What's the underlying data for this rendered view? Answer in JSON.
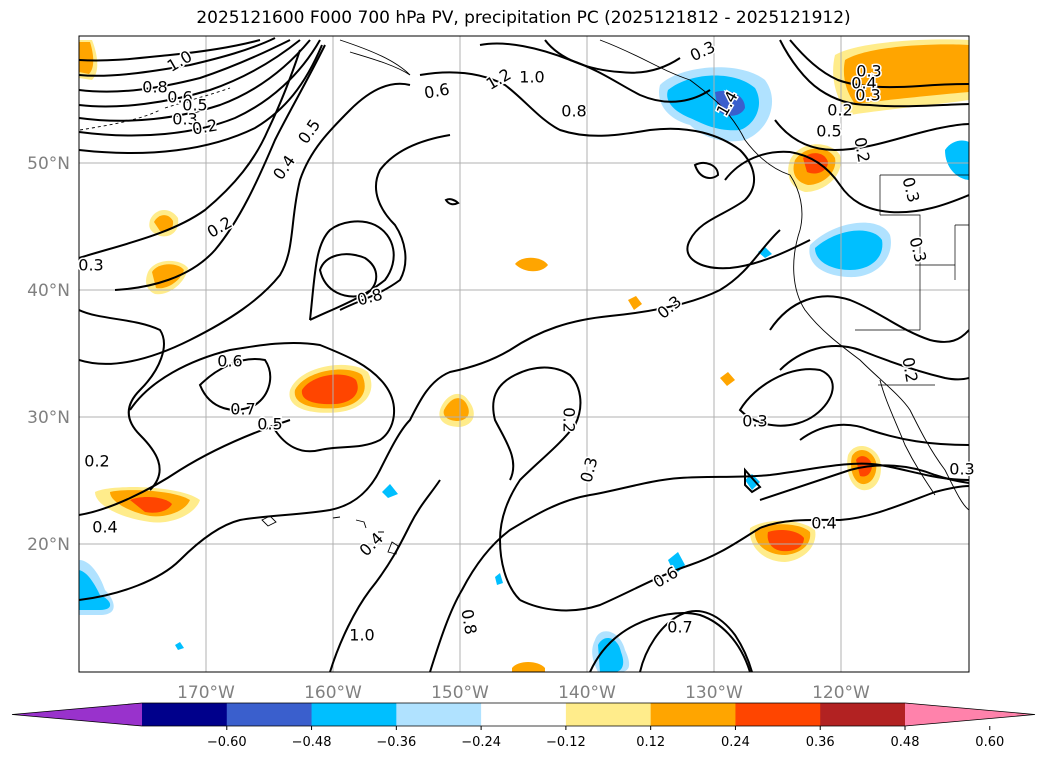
{
  "title": "2025121600 F000 700 hPa PV, precipitation PC (2025121812 - 2025121912)",
  "lat_ticks": [
    "50°N",
    "40°N",
    "30°N",
    "20°N"
  ],
  "lon_ticks": [
    "170°W",
    "160°W",
    "150°W",
    "140°W",
    "130°W",
    "120°W"
  ],
  "colorbar": {
    "colors": [
      "#9932cc",
      "#00008b",
      "#3a5fcd",
      "#00bfff",
      "#b0e2ff",
      "#ffffff",
      "#ffec8b",
      "#ffa500",
      "#ff4500",
      "#b22222",
      "#ff82ab"
    ],
    "labels": [
      "−0.60",
      "−0.48",
      "−0.36",
      "−0.24",
      "−0.12",
      "0.12",
      "0.24",
      "0.36",
      "0.48",
      "0.60"
    ]
  },
  "contour_labels": [
    "1.0",
    "0.8",
    "0.6",
    "0.5",
    "0.3",
    "0.2",
    "0.5",
    "0.4",
    "0.2",
    "0.3",
    "0.8",
    "0.6",
    "0.7",
    "0.5",
    "0.3",
    "0.4",
    "0.2",
    "0.3",
    "0.2",
    "0.3",
    "0.4",
    "0.7",
    "0.8",
    "1.0",
    "0.6",
    "0.4",
    "0.3",
    "1.4",
    "1.2",
    "1.0",
    "0.8",
    "0.6",
    "0.5",
    "0.3",
    "0.4",
    "0.3",
    "0.2",
    "0.2",
    "0.3",
    "0.2",
    "0.3",
    "0.3"
  ]
}
